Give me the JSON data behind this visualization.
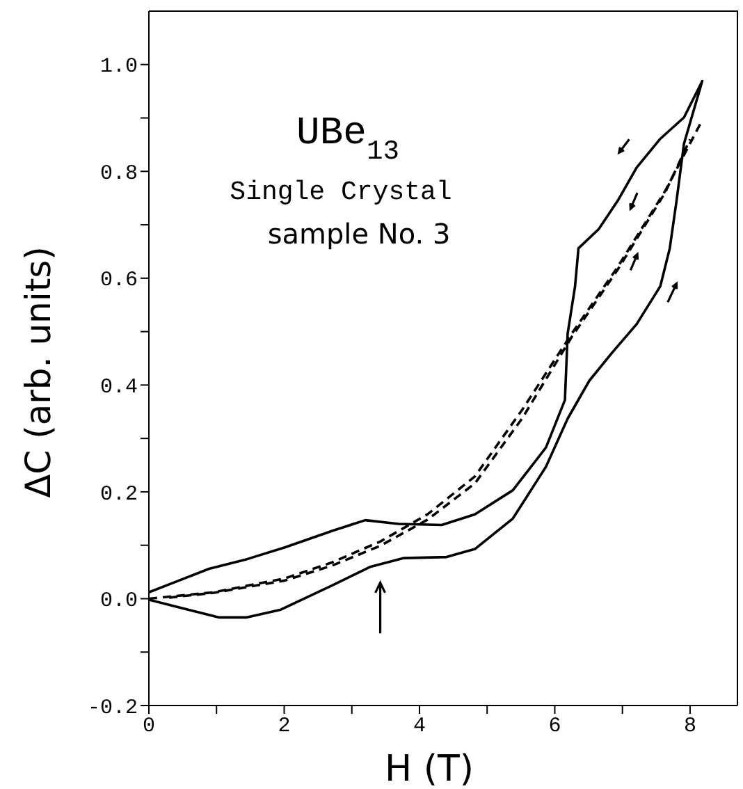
{
  "chart_data": {
    "type": "line",
    "xlabel": "H (T)",
    "ylabel": "ΔC (arb. units)",
    "annotations": [
      "UBe$_{13}$",
      "Single Crystal",
      "sample No. 3"
    ],
    "xlim": [
      0,
      8.7
    ],
    "ylim": [
      -0.2,
      1.1
    ],
    "xticks": [
      0,
      {
        "value": 1,
        "label": null
      },
      2,
      {
        "value": 3,
        "label": null
      },
      4,
      {
        "value": 5,
        "label": null
      },
      6,
      {
        "value": 7,
        "label": null
      },
      8
    ],
    "yticks": [
      {
        "value": -0.2,
        "label": "-0.2"
      },
      {
        "value": -0.1,
        "label": null
      },
      {
        "value": 0,
        "label": "0.0"
      },
      {
        "value": 0.1,
        "label": null
      },
      0.2,
      {
        "value": 0.3,
        "label": null
      },
      0.4,
      {
        "value": 0.5,
        "label": null
      },
      0.6,
      {
        "value": 0.7,
        "label": null
      },
      0.8,
      {
        "value": 0.9,
        "label": null
      },
      {
        "value": 1,
        "label": "1.0"
      }
    ],
    "marker": "none",
    "series": [
      {
        "color": "#000000",
        "line_style": "solid",
        "x": [
          0,
          1.03,
          1.45,
          1.94,
          2.71,
          3.28,
          3.77,
          4.4,
          4.82,
          5.38,
          5.87,
          6.19,
          6.51,
          6.85,
          7.21,
          7.56,
          7.7,
          7.8,
          7.91,
          8.18,
          7.91,
          7.56,
          7.21,
          6.93,
          6.65,
          6.35,
          6.3,
          6.19,
          6.15,
          5.87,
          5.38,
          4.82,
          4.33,
          3.69,
          3.2,
          2.71,
          2.01,
          1.45,
          0.89,
          0
        ],
        "values": [
          -0.002,
          -0.035,
          -0.035,
          -0.021,
          0.025,
          0.06,
          0.076,
          0.078,
          0.093,
          0.15,
          0.247,
          0.337,
          0.408,
          0.461,
          0.514,
          0.585,
          0.656,
          0.745,
          0.852,
          0.969,
          0.901,
          0.861,
          0.807,
          0.745,
          0.692,
          0.656,
          0.585,
          0.496,
          0.372,
          0.283,
          0.203,
          0.158,
          0.138,
          0.14,
          0.147,
          0.127,
          0.096,
          0.074,
          0.056,
          0.012
        ]
      },
      {
        "color": "#000000",
        "line_style": "dashed",
        "x": [
          0,
          0.96,
          2.01,
          2.71,
          3.42,
          4.12,
          4.82,
          5.52,
          6.25,
          6.93,
          7.63,
          8.18
        ],
        "values": [
          0,
          0.012,
          0.038,
          0.068,
          0.107,
          0.158,
          0.229,
          0.354,
          0.496,
          0.621,
          0.763,
          0.896
        ]
      },
      {
        "color": "#000000",
        "line_style": "dashed",
        "x": [
          0.3,
          0.96,
          2.01,
          2.71,
          3.42,
          4.12,
          4.82,
          5.52,
          6.25,
          6.93,
          7.63,
          8.0
        ],
        "values": [
          0.002,
          0.011,
          0.034,
          0.062,
          0.099,
          0.148,
          0.216,
          0.338,
          0.49,
          0.616,
          0.76,
          0.86
        ]
      }
    ]
  }
}
